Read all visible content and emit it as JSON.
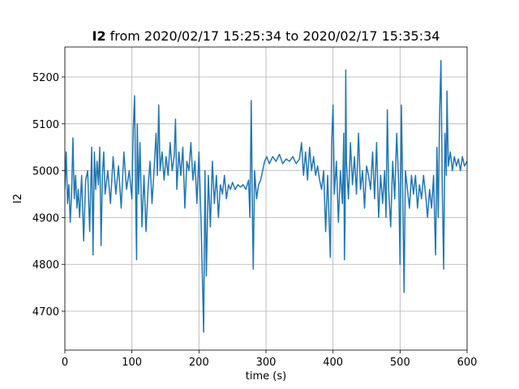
{
  "chart_data": {
    "type": "line",
    "title_bold": "I2",
    "title": "from 2020/02/17 15:25:34 to 2020/02/17 15:35:34",
    "xlabel": "time (s)",
    "ylabel": "I2",
    "color": "#1f77b4",
    "grid": true,
    "xlim": [
      0,
      600
    ],
    "xticks": [
      0,
      100,
      200,
      300,
      400,
      500,
      600
    ],
    "ylim": [
      4617,
      5264
    ],
    "yticks": [
      4700,
      4800,
      4900,
      5000,
      5100,
      5200
    ],
    "x": [
      0,
      2,
      4,
      6,
      8,
      10,
      12,
      14,
      16,
      18,
      20,
      22,
      25,
      28,
      31,
      34,
      37,
      40,
      42,
      44,
      46,
      48,
      50,
      52,
      54,
      56,
      58,
      60,
      64,
      68,
      72,
      76,
      80,
      84,
      88,
      92,
      96,
      100,
      102,
      104,
      106,
      107,
      108,
      110,
      112,
      115,
      118,
      121,
      124,
      127,
      130,
      133,
      136,
      138,
      140,
      142,
      145,
      148,
      151,
      154,
      157,
      160,
      163,
      165,
      167,
      170,
      173,
      176,
      179,
      182,
      185,
      188,
      191,
      194,
      197,
      200,
      203,
      205,
      207,
      209,
      211,
      214,
      217,
      220,
      223,
      226,
      229,
      232,
      235,
      238,
      241,
      244,
      247,
      250,
      254,
      258,
      262,
      266,
      270,
      274,
      276,
      278,
      280,
      281,
      283,
      286,
      289,
      292,
      295,
      298,
      301,
      305,
      310,
      315,
      320,
      325,
      330,
      335,
      340,
      345,
      350,
      353,
      356,
      359,
      362,
      365,
      368,
      371,
      374,
      377,
      380,
      383,
      386,
      389,
      392,
      394,
      396,
      398,
      400,
      402,
      405,
      408,
      411,
      414,
      416,
      417,
      418,
      419,
      420,
      423,
      426,
      429,
      432,
      435,
      438,
      441,
      444,
      447,
      450,
      453,
      456,
      459,
      462,
      465,
      468,
      471,
      474,
      477,
      479,
      481,
      483,
      486,
      489,
      492,
      495,
      498,
      500,
      502,
      504,
      506,
      508,
      511,
      514,
      517,
      520,
      523,
      526,
      529,
      532,
      535,
      538,
      541,
      544,
      547,
      550,
      552,
      553,
      555,
      557,
      559,
      561,
      563,
      565,
      567,
      569,
      570,
      572,
      575,
      578,
      581,
      584,
      587,
      590,
      593,
      596,
      600
    ],
    "values": [
      4960,
      5040,
      4930,
      4970,
      4890,
      4950,
      5070,
      4940,
      4990,
      4920,
      4960,
      4900,
      4990,
      4850,
      4980,
      5000,
      4870,
      5050,
      4820,
      5040,
      4960,
      5020,
      4970,
      5050,
      4840,
      4990,
      5040,
      4950,
      5000,
      4930,
      5030,
      4950,
      5010,
      4920,
      5040,
      4960,
      5000,
      4940,
      5090,
      5160,
      4900,
      4810,
      5100,
      4950,
      5060,
      4880,
      4990,
      4870,
      4960,
      5020,
      4930,
      5000,
      5080,
      4990,
      5140,
      5000,
      5040,
      4980,
      5030,
      4990,
      5060,
      5000,
      5030,
      5110,
      4960,
      5040,
      4990,
      5050,
      4920,
      5020,
      5000,
      5060,
      4980,
      5020,
      4930,
      5040,
      4900,
      4780,
      4655,
      5000,
      4775,
      4990,
      4880,
      5020,
      4930,
      4990,
      4900,
      4970,
      4950,
      4990,
      4940,
      4970,
      4960,
      4975,
      4960,
      4970,
      4965,
      4970,
      4960,
      4980,
      4900,
      5150,
      4880,
      4790,
      5000,
      4940,
      4970,
      4980,
      5000,
      5020,
      5030,
      5015,
      5030,
      5020,
      5035,
      5015,
      5025,
      5020,
      5030,
      5015,
      5025,
      5060,
      4990,
      5040,
      4980,
      5050,
      5000,
      5030,
      4990,
      5010,
      4980,
      4960,
      5000,
      4870,
      4990,
      4900,
      4815,
      5060,
      5140,
      4950,
      5020,
      4890,
      5000,
      4930,
      5080,
      4810,
      4900,
      5215,
      5020,
      4940,
      5060,
      4970,
      5030,
      4950,
      5080,
      4960,
      5000,
      4920,
      5010,
      4990,
      4960,
      5040,
      4940,
      5060,
      4900,
      4990,
      4930,
      5000,
      4900,
      5130,
      4960,
      4880,
      5020,
      4940,
      5080,
      4970,
      4800,
      5140,
      4950,
      4740,
      5000,
      4960,
      4920,
      4990,
      4950,
      4990,
      4920,
      4970,
      4940,
      4990,
      4950,
      4900,
      4960,
      4920,
      4990,
      4870,
      4820,
      5050,
      4900,
      5120,
      5235,
      4960,
      4790,
      5080,
      4990,
      5170,
      5010,
      5040,
      5000,
      5030,
      5010,
      5025,
      5000,
      5030,
      5010,
      5020
    ]
  }
}
